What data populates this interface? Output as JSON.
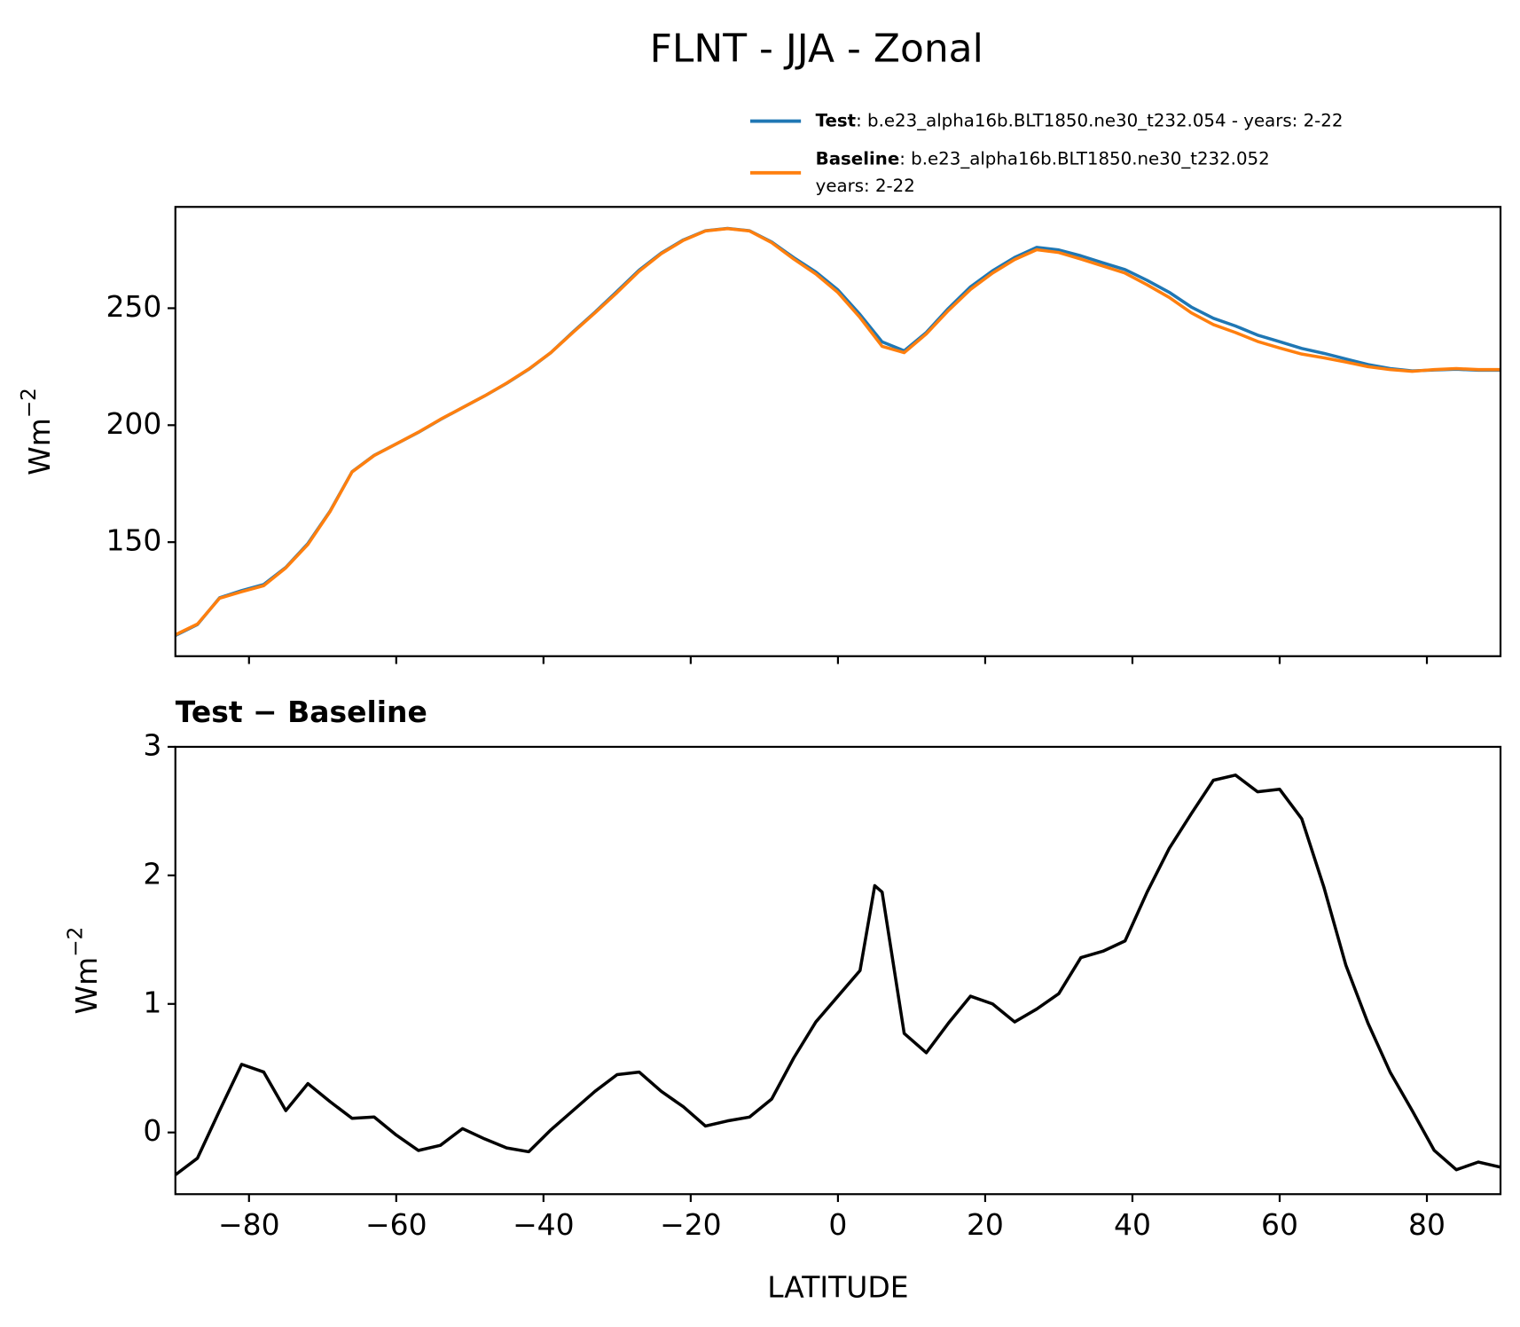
{
  "title": "FLNT - JJA - Zonal",
  "chart_data": [
    {
      "type": "line",
      "xlim": [
        -90,
        90
      ],
      "ylim": [
        101.25,
        293.3
      ],
      "xticks": [
        -80,
        -60,
        -40,
        -20,
        0,
        20,
        40,
        60,
        80
      ],
      "xtick_labels": false,
      "yticks": [
        150,
        200,
        250
      ],
      "ylabel": "Wm",
      "ylabel_exponent": "−2",
      "x": [
        -90,
        -87,
        -84,
        -81,
        -78,
        -75,
        -72,
        -69,
        -66,
        -63,
        -60,
        -57,
        -54,
        -51,
        -48,
        -45,
        -42,
        -39,
        -36,
        -33,
        -30,
        -27,
        -24,
        -21,
        -18,
        -15,
        -12,
        -9,
        -6,
        -3,
        0,
        3,
        6,
        9,
        12,
        15,
        18,
        21,
        24,
        27,
        30,
        33,
        36,
        39,
        42,
        45,
        48,
        51,
        54,
        57,
        60,
        63,
        66,
        69,
        72,
        75,
        78,
        81,
        84,
        87,
        90
      ],
      "series": [
        {
          "name": "Test",
          "description_lines": [
            ": b.e23_alpha16b.BLT1850.ne30_t232.054 - years: 2-22"
          ],
          "color": "#1f77b4",
          "values": [
            110.1,
            114.8,
            126.2,
            129.3,
            131.9,
            139.2,
            149.4,
            163.2,
            180.1,
            187.1,
            192.0,
            196.9,
            202.4,
            207.5,
            212.5,
            217.9,
            223.9,
            231.0,
            239.8,
            248.3,
            257.2,
            266.3,
            273.6,
            279.2,
            283.1,
            284.1,
            283.1,
            278.3,
            271.6,
            265.5,
            257.8,
            247.3,
            235.6,
            231.8,
            239.6,
            249.9,
            259.1,
            266.0,
            271.7,
            276.0,
            274.9,
            272.4,
            269.4,
            266.5,
            261.9,
            256.8,
            250.5,
            245.7,
            242.4,
            238.5,
            235.7,
            232.8,
            230.7,
            228.3,
            225.9,
            224.2,
            223.2,
            223.6,
            223.9,
            223.5,
            223.5
          ]
        },
        {
          "name": "Baseline",
          "description_lines": [
            ": b.e23_alpha16b.BLT1850.ne30_t232.052",
            "years: 2-22"
          ],
          "color": "#ff7f0e",
          "values": [
            110.4,
            115,
            126,
            128.8,
            131.4,
            139,
            149,
            163,
            180,
            187,
            192,
            197,
            202.5,
            207.5,
            212.5,
            218,
            224,
            231,
            239.6,
            248,
            256.7,
            265.8,
            273.3,
            279,
            283,
            284,
            283,
            278,
            271,
            264.6,
            256.7,
            246,
            233.7,
            231,
            239,
            249,
            258,
            265,
            270.8,
            275,
            273.8,
            271,
            268,
            265,
            260,
            254.6,
            248,
            243,
            239.6,
            235.8,
            233,
            230.4,
            228.8,
            227,
            225,
            223.75,
            223,
            223.75,
            224.2,
            223.75,
            223.75
          ]
        }
      ]
    },
    {
      "type": "line",
      "title": "Test − Baseline",
      "xlim": [
        -90,
        90
      ],
      "ylim": [
        -0.48,
        3
      ],
      "xticks": [
        {
          "value": -80,
          "label": "−80"
        },
        {
          "value": -60,
          "label": "−60"
        },
        {
          "value": -40,
          "label": "−40"
        },
        {
          "value": -20,
          "label": "−20"
        },
        0,
        20,
        40,
        60,
        80
      ],
      "yticks": [
        0,
        1,
        2,
        3
      ],
      "xlabel": "LATITUDE",
      "ylabel": "Wm",
      "ylabel_exponent": "−2",
      "x": [
        -90,
        -87,
        -84,
        -81,
        -78,
        -75,
        -72,
        -69,
        -66,
        -63,
        -60,
        -57,
        -54,
        -51,
        -48,
        -45,
        -42,
        -39,
        -36,
        -33,
        -30,
        -27,
        -24,
        -21,
        -18,
        -15,
        -12,
        -9,
        -6,
        -3,
        0,
        3,
        5,
        6,
        9,
        12,
        15,
        18,
        21,
        24,
        27,
        30,
        33,
        36,
        39,
        42,
        45,
        48,
        51,
        54,
        57,
        60,
        63,
        66,
        69,
        72,
        75,
        78,
        81,
        84,
        87,
        90
      ],
      "series": [
        {
          "color": "#000000",
          "values": [
            -0.33,
            -0.2,
            0.17,
            0.53,
            0.47,
            0.17,
            0.38,
            0.24,
            0.11,
            0.12,
            -0.02,
            -0.14,
            -0.1,
            0.03,
            -0.05,
            -0.12,
            -0.15,
            0.02,
            0.17,
            0.32,
            0.45,
            0.47,
            0.32,
            0.2,
            0.05,
            0.09,
            0.12,
            0.26,
            0.58,
            0.86,
            1.06,
            1.26,
            1.92,
            1.87,
            0.77,
            0.62,
            0.85,
            1.06,
            1.0,
            0.86,
            0.96,
            1.08,
            1.36,
            1.41,
            1.49,
            1.87,
            2.21,
            2.48,
            2.74,
            2.78,
            2.65,
            2.67,
            2.44,
            1.91,
            1.3,
            0.85,
            0.47,
            0.17,
            -0.14,
            -0.29,
            -0.23,
            -0.27
          ]
        }
      ]
    }
  ]
}
